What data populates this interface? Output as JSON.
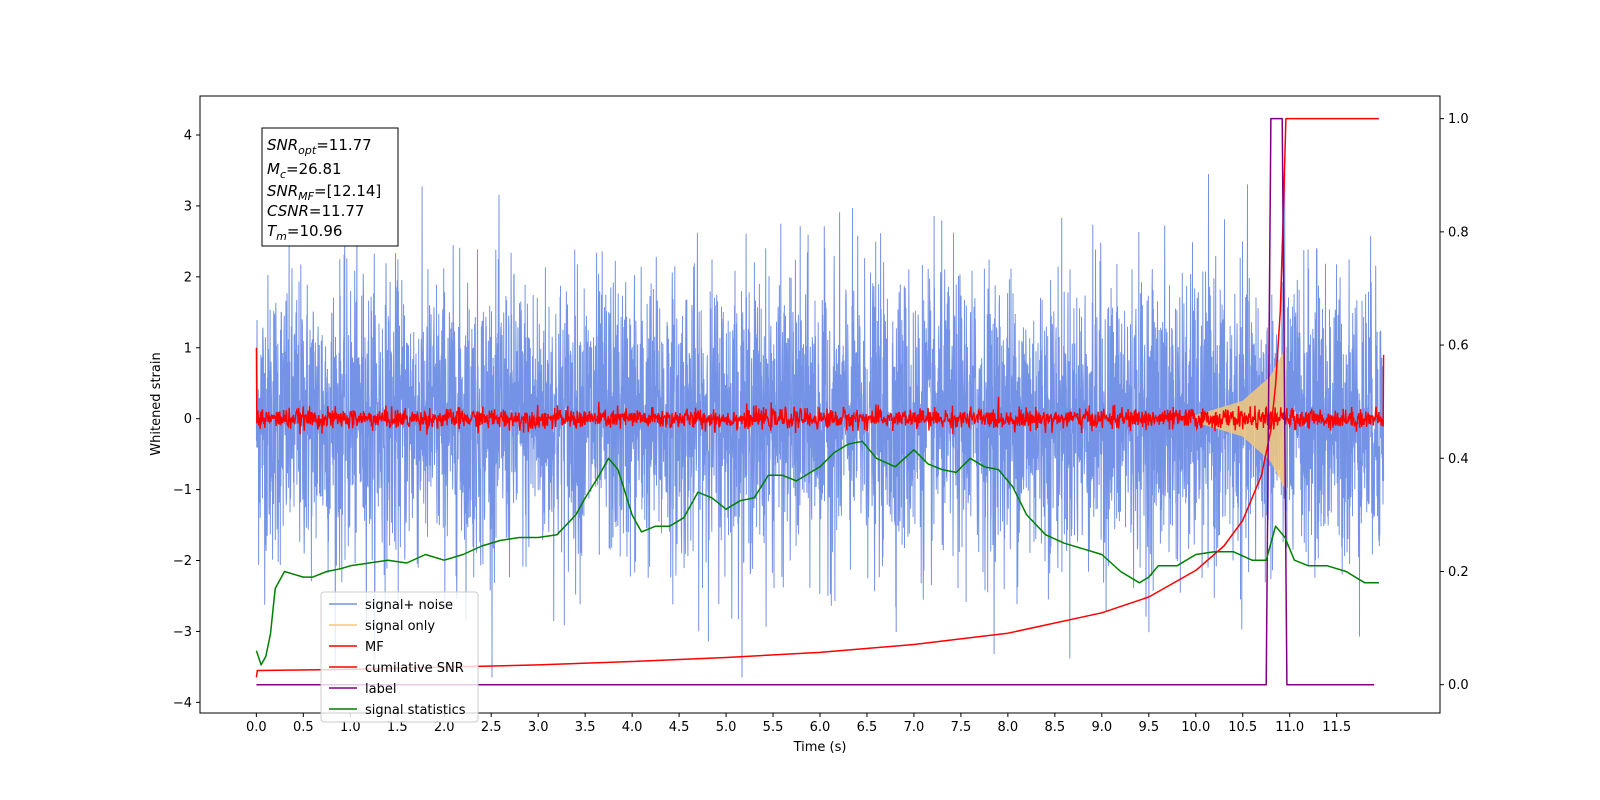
{
  "chart_data": {
    "type": "line",
    "xlabel": "Time (s)",
    "ylabel": "Whitened strain",
    "xlim": [
      -0.6,
      12.6
    ],
    "ylim": [
      -4.15,
      4.55
    ],
    "y2lim": [
      -0.05,
      1.04
    ],
    "x_ticks": [
      "0.0",
      "0.5",
      "1.0",
      "1.5",
      "2.0",
      "2.5",
      "3.0",
      "3.5",
      "4.0",
      "4.5",
      "5.0",
      "5.5",
      "6.0",
      "6.5",
      "7.0",
      "7.5",
      "8.0",
      "8.5",
      "9.0",
      "9.5",
      "10.0",
      "10.5",
      "11.0",
      "11.5"
    ],
    "y_ticks": [
      "−4",
      "−3",
      "−2",
      "−1",
      "0",
      "1",
      "2",
      "3",
      "4"
    ],
    "y2_ticks": [
      "0.0",
      "0.2",
      "0.4",
      "0.6",
      "0.8",
      "1.0"
    ],
    "grid": false,
    "legend_position": "lower-left",
    "annotation": {
      "snr_opt": {
        "base": "SNR",
        "sub": "opt",
        "value": "=11.77"
      },
      "mc": {
        "base": "M",
        "sub": "c",
        "value": "=26.81"
      },
      "snr_mf": {
        "base": "SNR",
        "sub": "MF",
        "value": "=[12.14]"
      },
      "csnr": {
        "base": "CSNR",
        "value": "=11.77"
      },
      "tm": {
        "base": "T",
        "sub": "m",
        "value": "=10.96"
      }
    },
    "series": [
      {
        "name": "signal+ noise",
        "color": "#7593e6",
        "axis": "left",
        "kind": "noise",
        "amplitude": 1.0,
        "x_range": [
          0.0,
          12.0
        ]
      },
      {
        "name": "signal only",
        "color": "#f5c97a",
        "axis": "left",
        "kind": "chirp",
        "envelope": [
          [
            10.0,
            0.05
          ],
          [
            10.5,
            0.25
          ],
          [
            10.8,
            0.6
          ],
          [
            10.96,
            1.0
          ]
        ]
      },
      {
        "name": "MF",
        "color": "#ff0000",
        "axis": "left",
        "kind": "noise",
        "amplitude": 0.08,
        "x_range": [
          0.0,
          12.0
        ],
        "start": 1.0,
        "end": 0.9
      },
      {
        "name": "cumilative SNR",
        "color": "#ff0000",
        "axis": "right",
        "x": [
          0.0,
          0.01,
          1.0,
          2.0,
          3.0,
          4.0,
          5.0,
          6.0,
          7.0,
          8.0,
          9.0,
          9.5,
          10.0,
          10.3,
          10.5,
          10.7,
          10.8,
          10.85,
          10.9,
          10.93,
          10.96,
          11.0,
          11.95
        ],
        "y": [
          0.013,
          0.025,
          0.027,
          0.031,
          0.035,
          0.041,
          0.048,
          0.057,
          0.071,
          0.091,
          0.127,
          0.155,
          0.202,
          0.245,
          0.29,
          0.37,
          0.45,
          0.53,
          0.66,
          0.82,
          1.0,
          1.0,
          1.0
        ]
      },
      {
        "name": "label",
        "color": "#800080",
        "axis": "right",
        "x": [
          0.0,
          10.75,
          10.8,
          10.92,
          10.97,
          11.9
        ],
        "y": [
          0.0,
          0.0,
          1.0,
          1.0,
          0.0,
          0.0
        ]
      },
      {
        "name": "signal statistics",
        "color": "#008000",
        "axis": "right",
        "x": [
          0.0,
          0.05,
          0.1,
          0.15,
          0.2,
          0.3,
          0.4,
          0.5,
          0.6,
          0.75,
          0.9,
          1.0,
          1.2,
          1.4,
          1.6,
          1.8,
          2.0,
          2.2,
          2.4,
          2.6,
          2.8,
          3.0,
          3.2,
          3.4,
          3.5,
          3.65,
          3.75,
          3.85,
          4.0,
          4.1,
          4.25,
          4.4,
          4.55,
          4.7,
          4.85,
          5.0,
          5.15,
          5.3,
          5.45,
          5.6,
          5.75,
          5.9,
          6.0,
          6.15,
          6.3,
          6.45,
          6.6,
          6.8,
          7.0,
          7.15,
          7.3,
          7.45,
          7.6,
          7.75,
          7.9,
          8.05,
          8.2,
          8.4,
          8.6,
          8.8,
          9.0,
          9.2,
          9.4,
          9.5,
          9.6,
          9.8,
          10.0,
          10.2,
          10.4,
          10.6,
          10.75,
          10.85,
          10.95,
          11.05,
          11.2,
          11.4,
          11.6,
          11.8,
          11.95
        ],
        "y": [
          0.06,
          0.035,
          0.05,
          0.09,
          0.17,
          0.2,
          0.195,
          0.19,
          0.19,
          0.2,
          0.205,
          0.21,
          0.215,
          0.22,
          0.215,
          0.23,
          0.22,
          0.23,
          0.245,
          0.255,
          0.26,
          0.26,
          0.265,
          0.3,
          0.33,
          0.37,
          0.4,
          0.38,
          0.3,
          0.27,
          0.28,
          0.28,
          0.295,
          0.34,
          0.33,
          0.31,
          0.325,
          0.33,
          0.37,
          0.37,
          0.36,
          0.375,
          0.385,
          0.41,
          0.425,
          0.43,
          0.4,
          0.385,
          0.415,
          0.39,
          0.38,
          0.375,
          0.4,
          0.385,
          0.38,
          0.35,
          0.3,
          0.265,
          0.25,
          0.24,
          0.23,
          0.2,
          0.18,
          0.19,
          0.21,
          0.21,
          0.23,
          0.235,
          0.235,
          0.22,
          0.22,
          0.28,
          0.26,
          0.22,
          0.21,
          0.21,
          0.2,
          0.18,
          0.18
        ]
      }
    ]
  }
}
